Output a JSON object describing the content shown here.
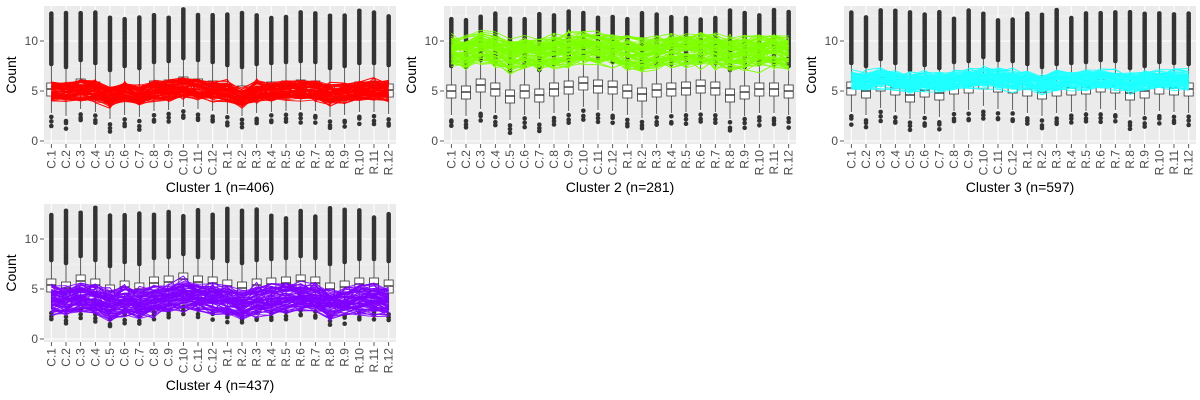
{
  "chart_data": [
    {
      "type": "box",
      "title": "",
      "xlabel": "Cluster 1 (n=406)",
      "ylabel": "Count",
      "ylim": [
        -0.3,
        13.5
      ],
      "yticks": [
        0,
        5,
        10
      ],
      "grid": true,
      "categories": [
        "C.1",
        "C.2",
        "C.3",
        "C.4",
        "C.5",
        "C.6",
        "C.7",
        "C.8",
        "C.9",
        "C.10",
        "C.11",
        "C.12",
        "R.1",
        "R.2",
        "R.3",
        "R.4",
        "R.5",
        "R.6",
        "R.7",
        "R.8",
        "R.9",
        "R.10",
        "R.11",
        "R.12"
      ],
      "box_median": [
        5.2,
        4.9,
        5.6,
        5.3,
        4.6,
        5.0,
        4.8,
        5.4,
        5.5,
        5.8,
        5.6,
        5.4,
        5.1,
        4.9,
        5.2,
        5.3,
        5.4,
        5.5,
        5.4,
        4.8,
        5.0,
        5.3,
        5.3,
        5.1
      ],
      "line_color": "#ff0000",
      "line_center": [
        5.0,
        4.9,
        5.1,
        5.0,
        4.5,
        5.0,
        4.6,
        5.0,
        5.1,
        5.4,
        5.2,
        5.0,
        4.9,
        4.3,
        5.0,
        4.9,
        5.1,
        5.1,
        5.0,
        4.6,
        4.8,
        5.0,
        5.1,
        5.0
      ],
      "line_spread": 0.8
    },
    {
      "type": "box",
      "title": "",
      "xlabel": "Cluster 2 (n=281)",
      "ylabel": "Count",
      "ylim": [
        -0.3,
        13.5
      ],
      "yticks": [
        0,
        5,
        10
      ],
      "grid": true,
      "categories": [
        "C.1",
        "C.2",
        "C.3",
        "C.4",
        "C.5",
        "C.6",
        "C.7",
        "C.8",
        "C.9",
        "C.10",
        "C.11",
        "C.12",
        "R.1",
        "R.2",
        "R.3",
        "R.4",
        "R.5",
        "R.6",
        "R.7",
        "R.8",
        "R.9",
        "R.10",
        "R.11",
        "R.12"
      ],
      "box_median": [
        5.0,
        4.9,
        5.6,
        5.2,
        4.5,
        5.0,
        4.6,
        5.2,
        5.4,
        5.8,
        5.5,
        5.4,
        5.0,
        4.7,
        5.1,
        5.2,
        5.3,
        5.5,
        5.3,
        4.6,
        4.9,
        5.2,
        5.2,
        5.0
      ],
      "line_color": "#7fff00",
      "line_center": [
        9.0,
        8.8,
        9.4,
        9.1,
        8.5,
        9.0,
        8.6,
        8.9,
        9.1,
        9.3,
        9.2,
        9.0,
        8.8,
        8.5,
        8.8,
        9.0,
        9.1,
        9.2,
        9.1,
        8.6,
        8.8,
        8.9,
        9.0,
        8.7
      ],
      "line_spread": 1.3
    },
    {
      "type": "box",
      "title": "",
      "xlabel": "Cluster 3 (n=597)",
      "ylabel": "Count",
      "ylim": [
        -0.3,
        13.5
      ],
      "yticks": [
        0,
        5,
        10
      ],
      "grid": true,
      "categories": [
        "C.1",
        "C.2",
        "C.3",
        "C.4",
        "C.5",
        "C.6",
        "C.7",
        "C.8",
        "C.9",
        "C.10",
        "C.11",
        "C.12",
        "R.1",
        "R.2",
        "R.3",
        "R.4",
        "R.5",
        "R.6",
        "R.7",
        "R.8",
        "R.9",
        "R.10",
        "R.11",
        "R.12"
      ],
      "box_median": [
        5.3,
        5.0,
        5.7,
        5.3,
        4.6,
        5.1,
        4.8,
        5.4,
        5.5,
        5.9,
        5.6,
        5.5,
        5.2,
        4.9,
        5.2,
        5.3,
        5.4,
        5.6,
        5.5,
        4.8,
        5.0,
        5.4,
        5.3,
        5.2
      ],
      "line_color": "#1effff",
      "line_center": [
        6.1,
        6.0,
        6.3,
        6.1,
        5.7,
        6.0,
        5.8,
        6.1,
        6.2,
        6.3,
        6.2,
        6.1,
        6.0,
        5.7,
        6.0,
        6.1,
        6.1,
        6.2,
        6.1,
        5.8,
        6.0,
        6.1,
        6.1,
        6.0
      ],
      "line_spread": 0.8
    },
    {
      "type": "box",
      "title": "",
      "xlabel": "Cluster 4 (n=437)",
      "ylabel": "Count",
      "ylim": [
        -0.3,
        13.5
      ],
      "yticks": [
        0,
        5,
        10
      ],
      "grid": true,
      "categories": [
        "C.1",
        "C.2",
        "C.3",
        "C.4",
        "C.5",
        "C.6",
        "C.7",
        "C.8",
        "C.9",
        "C.10",
        "C.11",
        "C.12",
        "R.1",
        "R.2",
        "R.3",
        "R.4",
        "R.5",
        "R.6",
        "R.7",
        "R.8",
        "R.9",
        "R.10",
        "R.11",
        "R.12"
      ],
      "box_median": [
        5.4,
        5.1,
        5.8,
        5.4,
        4.8,
        5.2,
        5.0,
        5.6,
        5.7,
        6.0,
        5.7,
        5.6,
        5.3,
        5.1,
        5.4,
        5.5,
        5.6,
        5.8,
        5.6,
        5.0,
        5.2,
        5.5,
        5.5,
        5.3
      ],
      "line_color": "#7f00ff",
      "line_center": [
        3.9,
        3.8,
        4.1,
        3.9,
        3.3,
        3.7,
        3.4,
        3.8,
        4.0,
        4.4,
        4.2,
        4.0,
        3.9,
        3.3,
        3.8,
        3.9,
        4.0,
        4.1,
        4.0,
        3.5,
        3.6,
        3.9,
        3.9,
        3.7
      ],
      "line_spread": 1.2
    }
  ]
}
